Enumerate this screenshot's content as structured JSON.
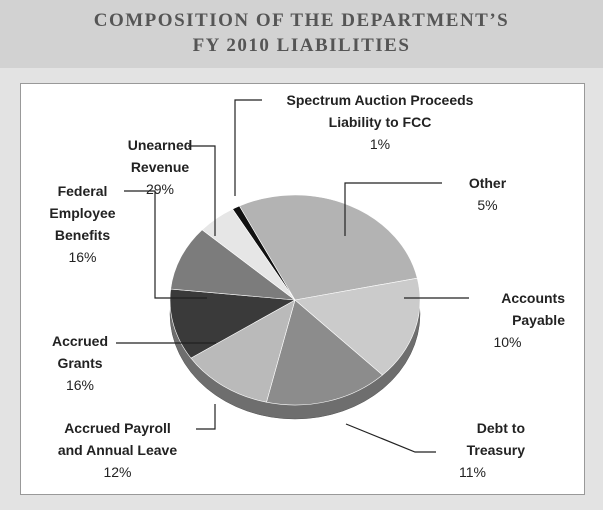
{
  "chart_data": {
    "type": "pie",
    "title": "COMPOSITION OF THE DEPARTMENT’S\nFY 2010 LIABILITIES",
    "categories": [
      "Spectrum Auction Proceeds\nLiability to FCC",
      "Unearned\nRevenue",
      "Federal\nEmployee\nBenefits",
      "Accrued\nGrants",
      "Accrued Payroll\nand Annual Leave",
      "Debt to\nTreasury",
      "Accounts\nPayable",
      "Other"
    ],
    "values": [
      1,
      29,
      16,
      16,
      12,
      11,
      10,
      5
    ],
    "value_labels": [
      "1%",
      "29%",
      "16%",
      "16%",
      "12%",
      "11%",
      "10%",
      "5%"
    ],
    "colors": [
      "#111111",
      "#b3b3b3",
      "#cbcbcb",
      "#8c8c8c",
      "#bababa",
      "#3a3a3a",
      "#7c7c7c",
      "#e6e6e6"
    ]
  }
}
